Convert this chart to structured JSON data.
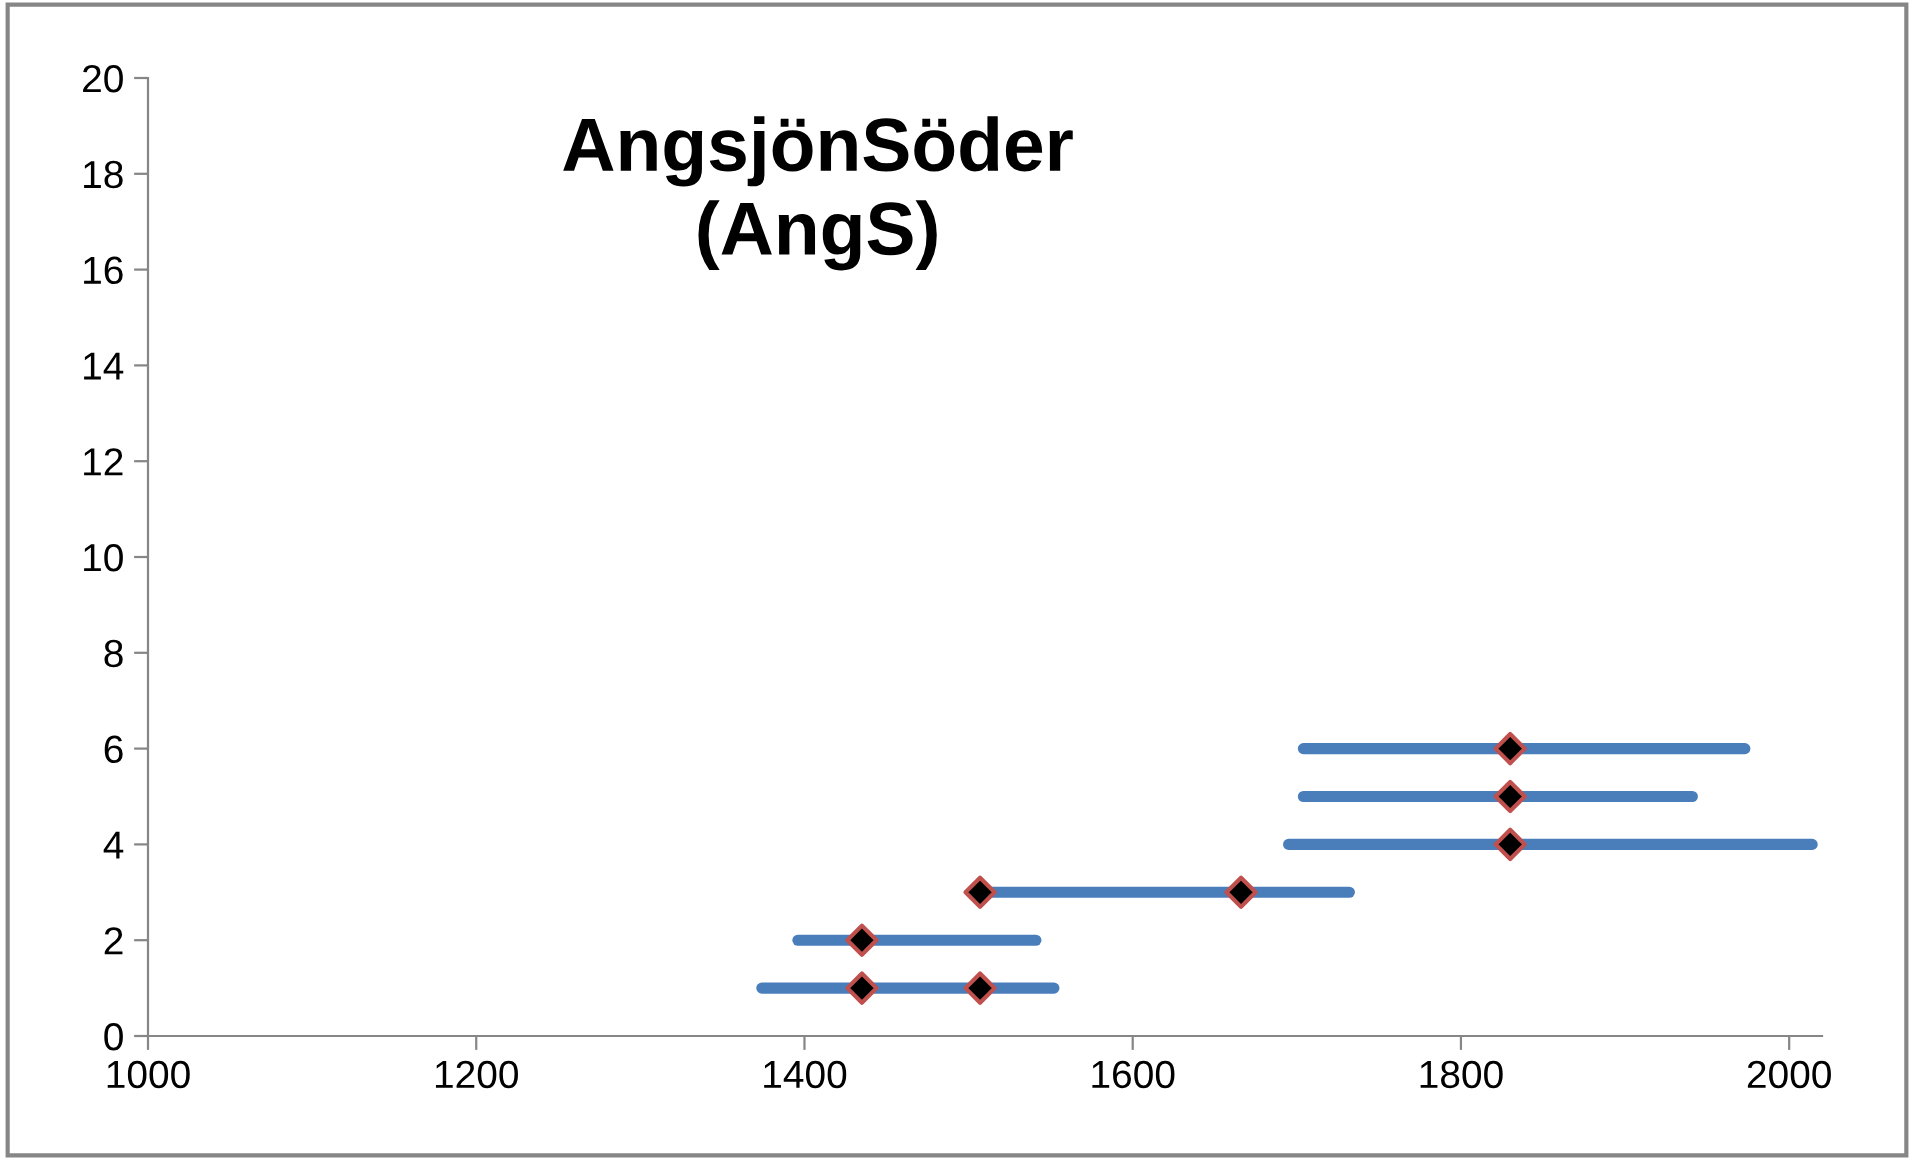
{
  "chart_data": {
    "type": "line",
    "title": "AngsjönSöder\n(AngS)",
    "xlim": [
      1000,
      2020
    ],
    "xticks": [
      1000,
      1200,
      1400,
      1600,
      1800,
      2000
    ],
    "ylim": [
      0,
      20
    ],
    "yticks": [
      0,
      2,
      4,
      6,
      8,
      10,
      12,
      14,
      16,
      18,
      20
    ],
    "grid": false,
    "legend": false,
    "marker": "none",
    "line_style": "solid",
    "series": [
      {
        "color": "#4a7ebb",
        "x": [
          1374,
          1552
        ],
        "values": [
          1,
          1
        ]
      },
      {
        "color": "#4a7ebb",
        "x": [
          1396,
          1541
        ],
        "values": [
          2,
          2
        ]
      },
      {
        "color": "#4a7ebb",
        "x": [
          1507,
          1732
        ],
        "values": [
          3,
          3
        ]
      },
      {
        "color": "#4a7ebb",
        "x": [
          1695,
          2014
        ],
        "values": [
          4,
          4
        ]
      },
      {
        "color": "#4a7ebb",
        "x": [
          1704,
          1941
        ],
        "values": [
          5,
          5
        ]
      },
      {
        "color": "#4a7ebb",
        "x": [
          1704,
          1973
        ],
        "values": [
          6,
          6
        ]
      },
      {
        "type": "scatter",
        "color": "#000000",
        "marker": "diamond",
        "x": [
          1435,
          1507,
          1435,
          1507,
          1666,
          1830,
          1830,
          1830
        ],
        "values": [
          1,
          1,
          2,
          3,
          3,
          4,
          5,
          6
        ]
      }
    ]
  }
}
